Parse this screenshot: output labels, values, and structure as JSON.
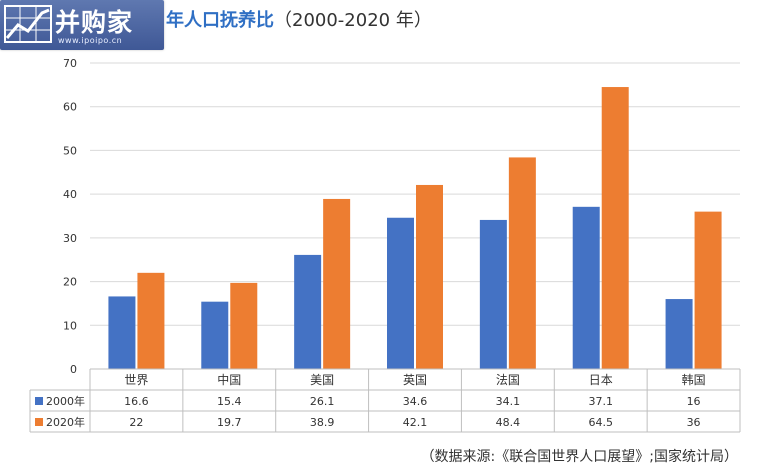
{
  "logo": {
    "text": "并购家",
    "url": "www.ipoipo.cn"
  },
  "title": {
    "main": "年人口抚养比",
    "sub": "（2000-2020 年）"
  },
  "source_note": "（数据来源:《联合国世界人口展望》;国家统计局）",
  "colors": {
    "series_2000": "#4472c4",
    "series_2020": "#ed7d31",
    "grid": "#d9d9d9",
    "title": "#2f6fc4"
  },
  "chart_data": {
    "type": "bar",
    "categories": [
      "世界",
      "中国",
      "美国",
      "英国",
      "法国",
      "日本",
      "韩国"
    ],
    "series": [
      {
        "name": "2000年",
        "values": [
          16.6,
          15.4,
          26.1,
          34.6,
          34.1,
          37.1,
          16
        ]
      },
      {
        "name": "2020年",
        "values": [
          22,
          19.7,
          38.9,
          42.1,
          48.4,
          64.5,
          36
        ]
      }
    ],
    "y_ticks": [
      0,
      10,
      20,
      30,
      40,
      50,
      60,
      70
    ],
    "ylim": [
      0,
      70
    ],
    "xlabel": "",
    "ylabel": "",
    "grid": true,
    "legend": "data-table-left",
    "data_table_values": [
      [
        "16.6",
        "15.4",
        "26.1",
        "34.6",
        "34.1",
        "37.1",
        "16"
      ],
      [
        "22",
        "19.7",
        "38.9",
        "42.1",
        "48.4",
        "64.5",
        "36"
      ]
    ]
  }
}
